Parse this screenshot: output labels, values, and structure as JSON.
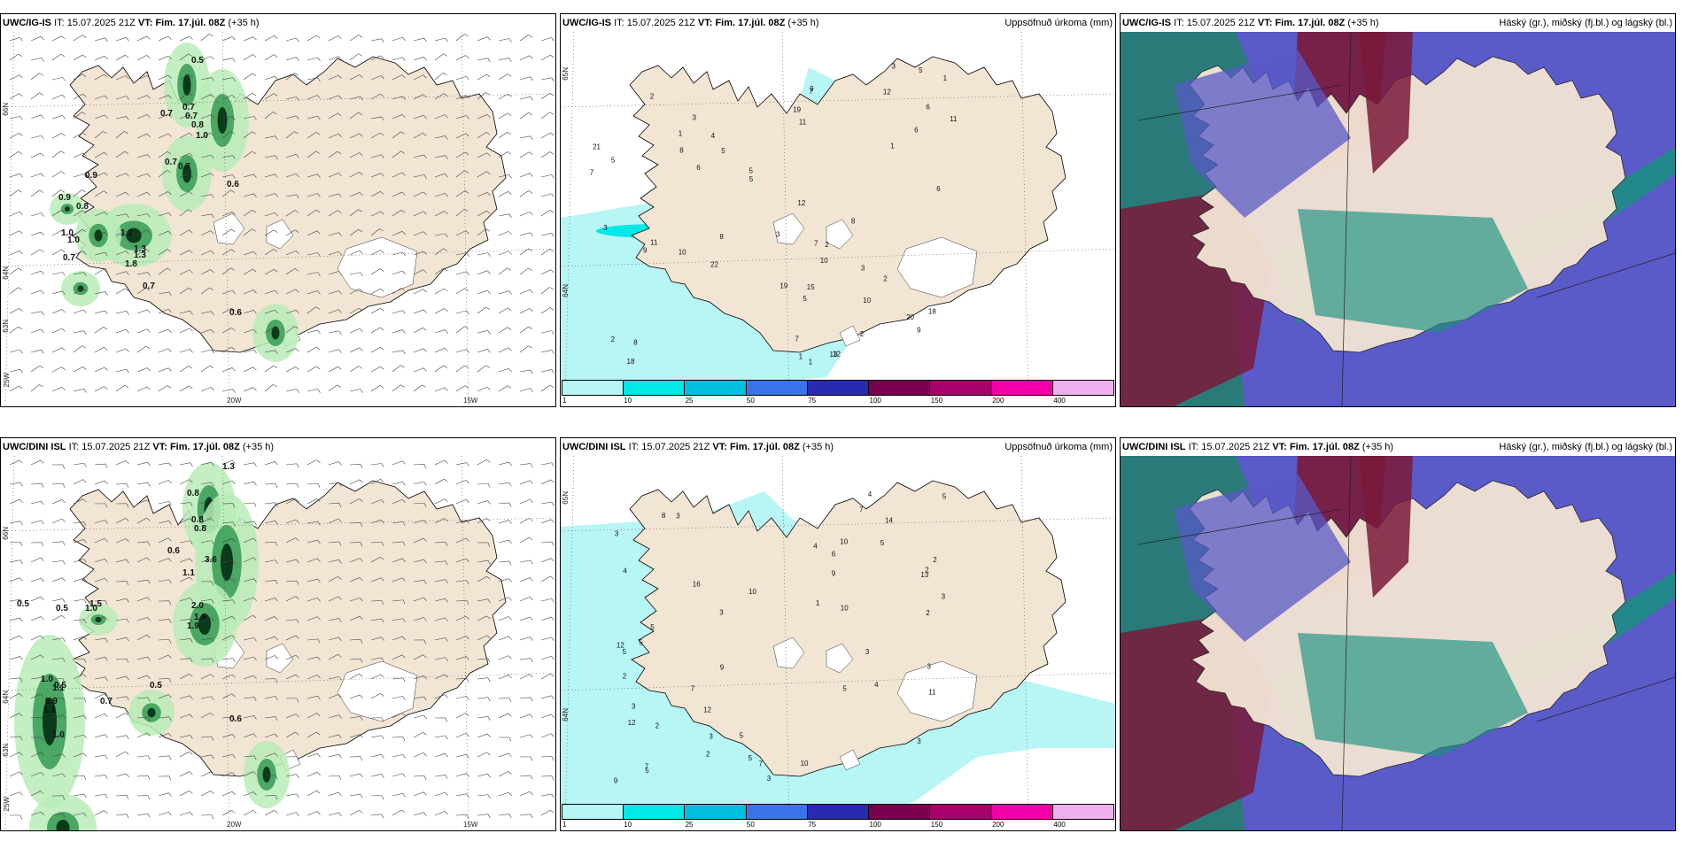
{
  "panels": [
    {
      "id": "top-left",
      "model": "UWC/IG-IS",
      "it_label": "IT:",
      "it_value": "15.07.2025 21Z",
      "vt_label": "VT:",
      "vt_value": "Fim. 17.júl. 08Z",
      "lead": "(+35 h)",
      "right_title": "",
      "lat_labels": [
        "66N",
        "64N",
        "63N"
      ],
      "lon_labels": [
        "25W",
        "20W",
        "15W"
      ],
      "value_labels": [
        "0.5",
        "0.7",
        "0.7",
        "0.7",
        "0.8",
        "1.0",
        "0.7",
        "0.7",
        "0.9",
        "0.6",
        "0.9",
        "1.0",
        "0.8",
        "1.0",
        "1.2",
        "0.7",
        "1.3",
        "1.8",
        "1.3",
        "0.7",
        "0.6"
      ]
    },
    {
      "id": "top-middle",
      "model": "UWC/IG-IS",
      "it_label": "IT:",
      "it_value": "15.07.2025 21Z",
      "vt_label": "VT:",
      "vt_value": "Fim. 17.júl. 08Z",
      "lead": "(+35 h)",
      "right_title": "Uppsöfnuð úrkoma (mm)",
      "lat_labels": [
        "65N",
        "64N"
      ],
      "lon_labels": [],
      "value_labels": [
        "2",
        "1",
        "1",
        "2",
        "3",
        "8",
        "12",
        "10",
        "9",
        "15",
        "18",
        "5",
        "7",
        "9",
        "8",
        "6",
        "1",
        "2",
        "3",
        "4",
        "1",
        "5",
        "10",
        "12",
        "21",
        "22",
        "20",
        "11",
        "9",
        "10",
        "3",
        "3",
        "13",
        "18",
        "19",
        "19",
        "7",
        "7",
        "6",
        "5",
        "7",
        "12",
        "6",
        "6",
        "8",
        "11",
        "11",
        "8",
        "5",
        "2",
        "1",
        "3",
        "2",
        "5",
        "5"
      ]
    },
    {
      "id": "top-right",
      "model": "UWC/IG-IS",
      "it_label": "IT:",
      "it_value": "15.07.2025 21Z",
      "vt_label": "VT:",
      "vt_value": "Fim. 17.júl. 08Z",
      "lead": "(+35 h)",
      "right_title": "Háský (gr.), miðský (fj.bl.) og lágský (bl.)",
      "lat_labels": [],
      "lon_labels": [],
      "value_labels": []
    },
    {
      "id": "bottom-left",
      "model": "UWC/DINI ISL",
      "it_label": "IT:",
      "it_value": "15.07.2025 21Z",
      "vt_label": "VT:",
      "vt_value": "Fim. 17.júl. 08Z",
      "lead": "(+35 h)",
      "right_title": "",
      "lat_labels": [
        "66N",
        "64N",
        "63N"
      ],
      "lon_labels": [
        "25W",
        "20W",
        "15W"
      ],
      "value_labels": [
        "1.3",
        "0.8",
        "0.8",
        "0.8",
        "0.6",
        "3.6",
        "1.1",
        "1.5",
        "0.5",
        "0.5",
        "1.0",
        "0.5",
        "2.0",
        "1.6",
        "1.9",
        "0.5",
        "1.0",
        "1.1",
        "0.9",
        "1.1",
        "1.0",
        "0.7",
        "0.6"
      ]
    },
    {
      "id": "bottom-middle",
      "model": "UWC/DINI ISL",
      "it_label": "IT:",
      "it_value": "15.07.2025 21Z",
      "vt_label": "VT:",
      "vt_value": "Fim. 17.júl. 08Z",
      "lead": "(+35 h)",
      "right_title": "Uppsöfnuð úrkoma (mm)",
      "lat_labels": [
        "65N",
        "64N"
      ],
      "lon_labels": [],
      "value_labels": [
        "2",
        "2",
        "1",
        "2",
        "5",
        "4",
        "5",
        "3",
        "3",
        "2",
        "4",
        "11",
        "5",
        "3",
        "5",
        "3",
        "12",
        "9",
        "8",
        "2",
        "4",
        "3",
        "3",
        "6",
        "10",
        "7",
        "5",
        "4",
        "12",
        "12",
        "5",
        "9",
        "10",
        "14",
        "16",
        "13",
        "7",
        "5",
        "5",
        "5",
        "3",
        "10",
        "10",
        "9",
        "7",
        "7",
        "3",
        "3",
        "3",
        "2"
      ]
    },
    {
      "id": "bottom-right",
      "model": "UWC/DINI ISL",
      "it_label": "IT:",
      "it_value": "15.07.2025 21Z",
      "vt_label": "VT:",
      "vt_value": "Fim. 17.júl. 08Z",
      "lead": "(+35 h)",
      "right_title": "Háský (gr.), miðský (fj.bl.) og lágský (bl.)",
      "lat_labels": [],
      "lon_labels": [],
      "value_labels": []
    }
  ],
  "precip_legend": {
    "ticks": [
      "1",
      "10",
      "25",
      "50",
      "75",
      "100",
      "150",
      "200",
      "400"
    ],
    "colors": [
      "#b8f5f5",
      "#00e8e8",
      "#00c0e0",
      "#3a74e8",
      "#2a2ab0",
      "#7a0050",
      "#a8006a",
      "#f000a8",
      "#f0b0f0"
    ]
  },
  "colors": {
    "land": "#f3e5d4",
    "sea_precip": "#b8f5f5",
    "green_light": "#b8ecb8",
    "green_mid": "#3ea05a",
    "green_dark": "#0a3a1a",
    "cloud_blue": "#5a5ac8",
    "cloud_maroon": "#7a1a3a",
    "cloud_teal": "#1a9080"
  }
}
